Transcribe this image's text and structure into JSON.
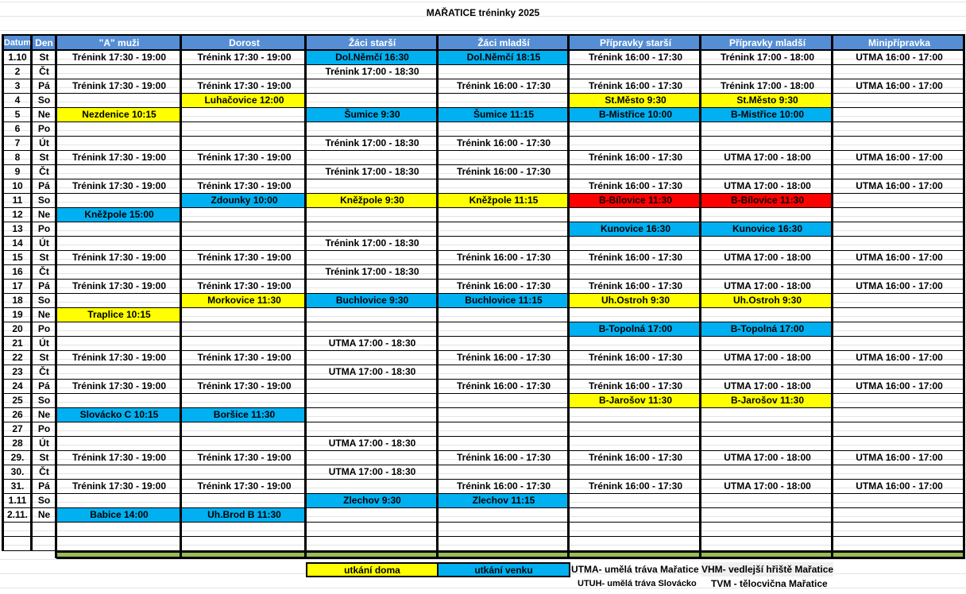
{
  "title": "MAŘATICE tréninky  2025",
  "colors": {
    "header": "#558ED5",
    "home": "#FFFF00",
    "away": "#00B0F0",
    "red": "#FF0000",
    "footer": "#9BBB59"
  },
  "columns": [
    "Datum",
    "Den",
    "\"A\" muži",
    "Dorost",
    "Žáci starší",
    "Žáci mladší",
    "Přípravky starší",
    "Přípravky mladší",
    "Minipřípravka"
  ],
  "rows": [
    {
      "date": "1.10",
      "day": "St",
      "cells": [
        "Trénink 17:30 - 19:00",
        "Trénink 17:30 - 19:00",
        "Dol.Němčí 16:30",
        "Dol.Němčí 18:15",
        "Trénink 16:00 - 17:30",
        "Trénink 17:00 - 18:00",
        "UTMA 16:00 - 17:00"
      ],
      "fills": [
        "",
        "",
        "away",
        "away",
        "",
        "",
        ""
      ]
    },
    {
      "date": "2",
      "day": "Čt",
      "cells": [
        "",
        "",
        "Trénink 17:00 - 18:30",
        "",
        "",
        "",
        ""
      ],
      "fills": [
        "",
        "",
        "",
        "",
        "",
        "",
        ""
      ]
    },
    {
      "date": "3",
      "day": "Pá",
      "cells": [
        "Trénink 17:30 - 19:00",
        "Trénink 17:30 - 19:00",
        "",
        "Trénink 16:00 - 17:30",
        "Trénink 16:00 - 17:30",
        "Trénink 17:00 - 18:00",
        "UTMA 16:00 - 17:00"
      ],
      "fills": [
        "",
        "",
        "",
        "",
        "",
        "",
        ""
      ]
    },
    {
      "date": "4",
      "day": "So",
      "cells": [
        "",
        "Luhačovice 12:00",
        "",
        "",
        "St.Město 9:30",
        "St.Město 9:30",
        ""
      ],
      "fills": [
        "",
        "home",
        "",
        "",
        "home",
        "home",
        ""
      ]
    },
    {
      "date": "5",
      "day": "Ne",
      "cells": [
        "Nezdenice 10:15",
        "",
        "Šumice 9:30",
        "Šumice 11:15",
        "B-Mistřice 10:00",
        "B-Mistřice 10:00",
        ""
      ],
      "fills": [
        "home",
        "",
        "away",
        "away",
        "away",
        "away",
        ""
      ]
    },
    {
      "date": "6",
      "day": "Po",
      "cells": [
        "",
        "",
        "",
        "",
        "",
        "",
        ""
      ],
      "fills": [
        "",
        "",
        "",
        "",
        "",
        "",
        ""
      ]
    },
    {
      "date": "7",
      "day": "Út",
      "cells": [
        "",
        "",
        "Trénink 17:00 - 18:30",
        "Trénink 16:00 - 17:30",
        "",
        "",
        ""
      ],
      "fills": [
        "",
        "",
        "",
        "",
        "",
        "",
        ""
      ]
    },
    {
      "date": "8",
      "day": "St",
      "cells": [
        "Trénink 17:30 - 19:00",
        "Trénink 17:30 - 19:00",
        "",
        "",
        "Trénink 16:00 - 17:30",
        "UTMA 17:00 - 18:00",
        "UTMA 16:00 - 17:00"
      ],
      "fills": [
        "",
        "",
        "",
        "",
        "",
        "",
        ""
      ]
    },
    {
      "date": "9",
      "day": "Čt",
      "cells": [
        "",
        "",
        "Trénink 17:00 - 18:30",
        "Trénink 16:00 - 17:30",
        "",
        "",
        ""
      ],
      "fills": [
        "",
        "",
        "",
        "",
        "",
        "",
        ""
      ]
    },
    {
      "date": "10",
      "day": "Pá",
      "cells": [
        "Trénink 17:30 - 19:00",
        "Trénink 17:30 - 19:00",
        "",
        "",
        "Trénink 16:00 - 17:30",
        "UTMA 17:00 - 18:00",
        "UTMA 16:00 - 17:00"
      ],
      "fills": [
        "",
        "",
        "",
        "",
        "",
        "",
        ""
      ]
    },
    {
      "date": "11",
      "day": "So",
      "cells": [
        "",
        "Zdounky 10:00",
        "Kněžpole 9:30",
        "Kněžpole 11:15",
        "B-Bílovice 11:30",
        "B-Bílovice 11:30",
        ""
      ],
      "fills": [
        "",
        "away",
        "home",
        "home",
        "red",
        "red",
        ""
      ]
    },
    {
      "date": "12",
      "day": "Ne",
      "cells": [
        "Kněžpole 15:00",
        "",
        "",
        "",
        "",
        "",
        ""
      ],
      "fills": [
        "away",
        "",
        "",
        "",
        "",
        "",
        ""
      ]
    },
    {
      "date": "13",
      "day": "Po",
      "cells": [
        "",
        "",
        "",
        "",
        "Kunovice 16:30",
        "Kunovice 16:30",
        ""
      ],
      "fills": [
        "",
        "",
        "",
        "",
        "away",
        "away",
        ""
      ]
    },
    {
      "date": "14",
      "day": "Út",
      "cells": [
        "",
        "",
        "Trénink 17:00 - 18:30",
        "",
        "",
        "",
        ""
      ],
      "fills": [
        "",
        "",
        "",
        "",
        "",
        "",
        ""
      ]
    },
    {
      "date": "15",
      "day": "St",
      "cells": [
        "Trénink 17:30 - 19:00",
        "Trénink 17:30 - 19:00",
        "",
        "Trénink 16:00 - 17:30",
        "Trénink 16:00 - 17:30",
        "UTMA 17:00 - 18:00",
        "UTMA 16:00 - 17:00"
      ],
      "fills": [
        "",
        "",
        "",
        "",
        "",
        "",
        ""
      ]
    },
    {
      "date": "16",
      "day": "Čt",
      "cells": [
        "",
        "",
        "Trénink 17:00 - 18:30",
        "",
        "",
        "",
        ""
      ],
      "fills": [
        "",
        "",
        "",
        "",
        "",
        "",
        ""
      ]
    },
    {
      "date": "17",
      "day": "Pá",
      "cells": [
        "Trénink 17:30 - 19:00",
        "Trénink 17:30 - 19:00",
        "",
        "Trénink 16:00 - 17:30",
        "Trénink 16:00 - 17:30",
        "UTMA 17:00 - 18:00",
        "UTMA 16:00 - 17:00"
      ],
      "fills": [
        "",
        "",
        "",
        "",
        "",
        "",
        ""
      ]
    },
    {
      "date": "18",
      "day": "So",
      "cells": [
        "",
        "Morkovice 11:30",
        "Buchlovice 9:30",
        "Buchlovice 11:15",
        "Uh.Ostroh 9:30",
        "Uh.Ostroh 9:30",
        ""
      ],
      "fills": [
        "",
        "home",
        "away",
        "away",
        "home",
        "home",
        ""
      ]
    },
    {
      "date": "19",
      "day": "Ne",
      "cells": [
        "Traplice 10:15",
        "",
        "",
        "",
        "",
        "",
        ""
      ],
      "fills": [
        "home",
        "",
        "",
        "",
        "",
        "",
        ""
      ]
    },
    {
      "date": "20",
      "day": "Po",
      "cells": [
        "",
        "",
        "",
        "",
        "B-Topolná 17:00",
        "B-Topolná 17:00",
        ""
      ],
      "fills": [
        "",
        "",
        "",
        "",
        "away",
        "away",
        ""
      ]
    },
    {
      "date": "21",
      "day": "Út",
      "cells": [
        "",
        "",
        "UTMA 17:00 - 18:30",
        "",
        "",
        "",
        ""
      ],
      "fills": [
        "",
        "",
        "",
        "",
        "",
        "",
        ""
      ]
    },
    {
      "date": "22",
      "day": "St",
      "cells": [
        "Trénink 17:30 - 19:00",
        "Trénink 17:30 - 19:00",
        "",
        "Trénink 16:00 - 17:30",
        "Trénink 16:00 - 17:30",
        "UTMA 17:00 - 18:00",
        "UTMA 16:00 - 17:00"
      ],
      "fills": [
        "",
        "",
        "",
        "",
        "",
        "",
        ""
      ]
    },
    {
      "date": "23",
      "day": "Čt",
      "cells": [
        "",
        "",
        "UTMA 17:00 - 18:30",
        "",
        "",
        "",
        ""
      ],
      "fills": [
        "",
        "",
        "",
        "",
        "",
        "",
        ""
      ]
    },
    {
      "date": "24",
      "day": "Pá",
      "cells": [
        "Trénink 17:30 - 19:00",
        "Trénink 17:30 - 19:00",
        "",
        "Trénink 16:00 - 17:30",
        "Trénink 16:00 - 17:30",
        "UTMA 17:00 - 18:00",
        "UTMA 16:00 - 17:00"
      ],
      "fills": [
        "",
        "",
        "",
        "",
        "",
        "",
        ""
      ]
    },
    {
      "date": "25",
      "day": "So",
      "cells": [
        "",
        "",
        "",
        "",
        "B-Jarošov 11:30",
        "B-Jarošov 11:30",
        ""
      ],
      "fills": [
        "",
        "",
        "",
        "",
        "home",
        "home",
        ""
      ]
    },
    {
      "date": "26",
      "day": "Ne",
      "cells": [
        "Slovácko C 10:15",
        "Boršice 11:30",
        "",
        "",
        "",
        "",
        ""
      ],
      "fills": [
        "away",
        "away",
        "",
        "",
        "",
        "",
        ""
      ]
    },
    {
      "date": "27",
      "day": "Po",
      "cells": [
        "",
        "",
        "",
        "",
        "",
        "",
        ""
      ],
      "fills": [
        "",
        "",
        "",
        "",
        "",
        "",
        ""
      ]
    },
    {
      "date": "28",
      "day": "Út",
      "cells": [
        "",
        "",
        "UTMA 17:00 - 18:30",
        "",
        "",
        "",
        ""
      ],
      "fills": [
        "",
        "",
        "",
        "",
        "",
        "",
        ""
      ]
    },
    {
      "date": "29.",
      "day": "St",
      "cells": [
        "Trénink 17:30 - 19:00",
        "Trénink 17:30 - 19:00",
        "",
        "Trénink 16:00 - 17:30",
        "Trénink 16:00 - 17:30",
        "UTMA 17:00 - 18:00",
        "UTMA 16:00 - 17:00"
      ],
      "fills": [
        "",
        "",
        "",
        "",
        "",
        "",
        ""
      ]
    },
    {
      "date": "30.",
      "day": "Čt",
      "cells": [
        "",
        "",
        "UTMA 17:00 - 18:30",
        "",
        "",
        "",
        ""
      ],
      "fills": [
        "",
        "",
        "",
        "",
        "",
        "",
        ""
      ]
    },
    {
      "date": "31.",
      "day": "Pá",
      "cells": [
        "Trénink 17:30 - 19:00",
        "Trénink 17:30 - 19:00",
        "",
        "Trénink 16:00 - 17:30",
        "Trénink 16:00 - 17:30",
        "UTMA 17:00 - 18:00",
        "UTMA 16:00 - 17:00"
      ],
      "fills": [
        "",
        "",
        "",
        "",
        "",
        "",
        ""
      ]
    },
    {
      "date": "1.11",
      "day": "So",
      "cells": [
        "",
        "",
        "Zlechov 9:30",
        "Zlechov 11:15",
        "",
        "",
        ""
      ],
      "fills": [
        "",
        "",
        "away",
        "away",
        "",
        "",
        ""
      ]
    },
    {
      "date": "2.11.",
      "day": "Ne",
      "cells": [
        "Babice 14:00",
        "Uh.Brod B 11:30",
        "",
        "",
        "",
        "",
        ""
      ],
      "fills": [
        "away",
        "away",
        "",
        "",
        "",
        "",
        ""
      ]
    },
    {
      "date": "",
      "day": "",
      "cells": [
        "",
        "",
        "",
        "",
        "",
        "",
        ""
      ],
      "fills": [
        "",
        "",
        "",
        "",
        "",
        "",
        ""
      ]
    },
    {
      "date": "",
      "day": "",
      "cells": [
        "",
        "",
        "",
        "",
        "",
        "",
        ""
      ],
      "fills": [
        "",
        "",
        "",
        "",
        "",
        "",
        ""
      ]
    }
  ],
  "legend": {
    "home": "utkání doma",
    "away": "utkání venku",
    "utma": "UTMA- umělá tráva Mařatice",
    "vhm": "VHM- vedlejší hřiště Mařatice",
    "utuh": "UTUH- umělá tráva Slovácko",
    "tvm": "TVM - tělocvična Mařatice"
  }
}
